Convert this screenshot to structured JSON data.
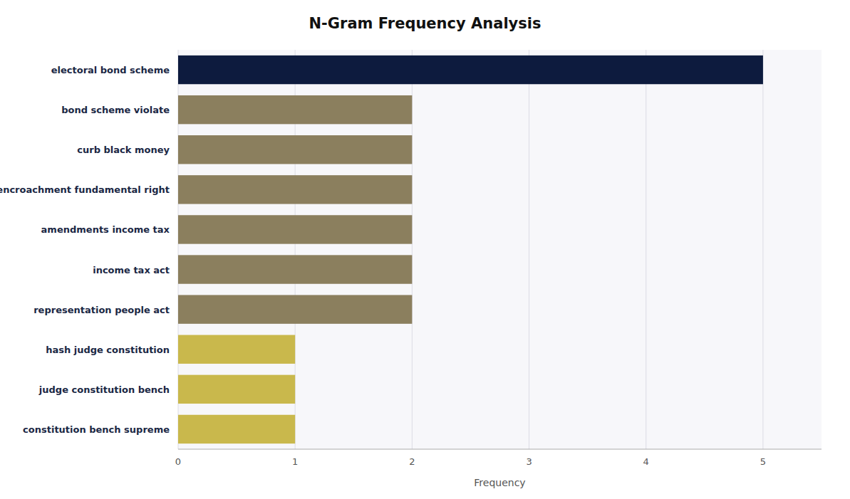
{
  "chart_data": {
    "type": "bar",
    "orientation": "horizontal",
    "title": "N-Gram Frequency Analysis",
    "categories": [
      "constitution bench supreme",
      "judge constitution bench",
      "hash judge constitution",
      "representation people act",
      "income tax act",
      "amendments income tax",
      "encroachment fundamental right",
      "curb black money",
      "bond scheme violate",
      "electoral bond scheme"
    ],
    "values": [
      1,
      1,
      1,
      2,
      2,
      2,
      2,
      2,
      2,
      5
    ],
    "colors": [
      "#c9b84c",
      "#c9b84c",
      "#c9b84c",
      "#8b7f5e",
      "#8b7f5e",
      "#8b7f5e",
      "#8b7f5e",
      "#8b7f5e",
      "#8b7f5e",
      "#0d1b3e"
    ],
    "xlabel": "Frequency",
    "xlim": [
      0,
      5.5
    ],
    "xticks": [
      0,
      1,
      2,
      3,
      4,
      5
    ],
    "grid": true
  }
}
